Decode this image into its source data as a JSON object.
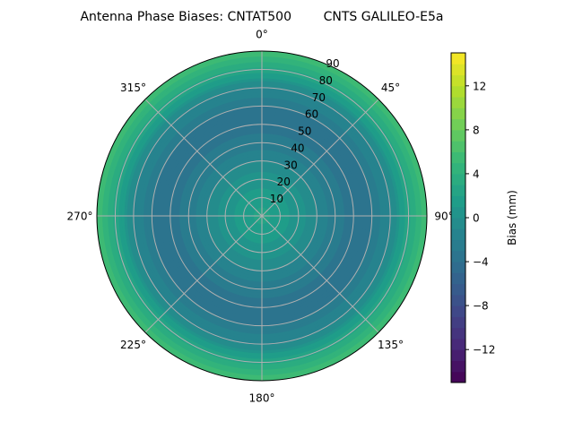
{
  "chart_data": {
    "type": "heatmap",
    "projection": "polar",
    "title": "Antenna Phase Biases: CNTAT500        CNTS GALILEO-E5a",
    "azimuth_ticks": [
      {
        "angle": 0,
        "label": "0°"
      },
      {
        "angle": 45,
        "label": "45°"
      },
      {
        "angle": 90,
        "label": "90°"
      },
      {
        "angle": 135,
        "label": "135°"
      },
      {
        "angle": 180,
        "label": "180°"
      },
      {
        "angle": 225,
        "label": "225°"
      },
      {
        "angle": 270,
        "label": "270°"
      },
      {
        "angle": 315,
        "label": "315°"
      }
    ],
    "radial_ticks": [
      10,
      20,
      30,
      40,
      50,
      60,
      70,
      80,
      90
    ],
    "radial_range": [
      0,
      90
    ],
    "azimuth_direction": "clockwise",
    "azimuth_zero": "top",
    "grid": true,
    "colorbar": {
      "label": "Bias (mm)",
      "range": [
        -15,
        15
      ],
      "ticks": [
        -12,
        -8,
        -4,
        0,
        4,
        8,
        12
      ],
      "colormap": "viridis",
      "levels": 30,
      "placement": "right"
    },
    "radial_profile": {
      "zenith_angle": [
        0,
        10,
        20,
        30,
        40,
        50,
        60,
        70,
        80,
        90
      ],
      "bias_mm": [
        2.5,
        1.5,
        0.5,
        -1.0,
        -2.5,
        -3.5,
        -3.0,
        -1.0,
        2.5,
        6.0
      ]
    }
  }
}
